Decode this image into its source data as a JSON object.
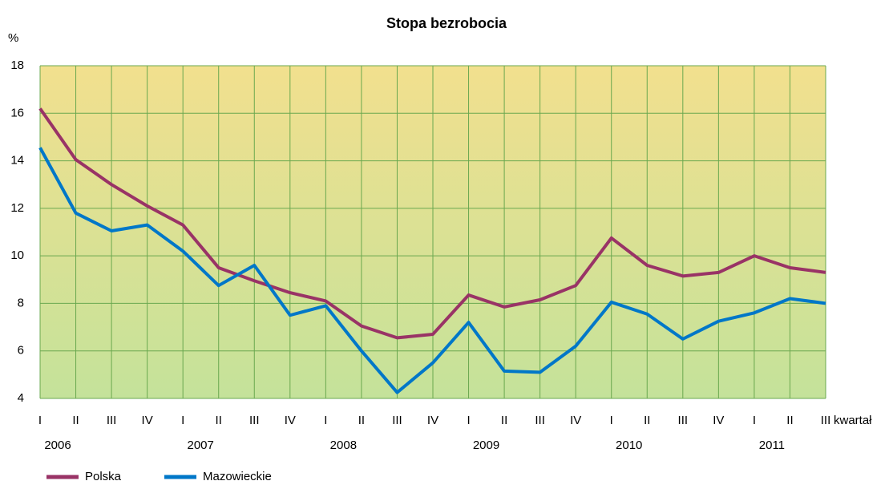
{
  "chart_data": {
    "type": "line",
    "title": "Stopa bezrobocia",
    "y_label": "%",
    "x_label": "kwartał",
    "categories": [
      "I",
      "II",
      "III",
      "IV",
      "I",
      "II",
      "III",
      "IV",
      "I",
      "II",
      "III",
      "IV",
      "I",
      "II",
      "III",
      "IV",
      "I",
      "II",
      "III",
      "IV",
      "I",
      "II",
      "III"
    ],
    "x_groups": [
      "2006",
      "2007",
      "2008",
      "2009",
      "2010",
      "2011"
    ],
    "series": [
      {
        "name": "Polska",
        "color": "#993366",
        "values": [
          16.2,
          14.05,
          13.0,
          12.1,
          11.3,
          9.5,
          8.95,
          8.45,
          8.1,
          7.05,
          6.55,
          6.7,
          8.35,
          7.85,
          8.15,
          8.75,
          10.75,
          9.6,
          9.15,
          9.3,
          10.0,
          9.5,
          9.3
        ]
      },
      {
        "name": "Mazowieckie",
        "color": "#0077c8",
        "values": [
          14.55,
          11.8,
          11.05,
          11.3,
          10.2,
          8.75,
          9.6,
          7.5,
          7.9,
          6.0,
          4.25,
          5.5,
          7.2,
          5.15,
          5.1,
          6.2,
          8.05,
          7.55,
          6.5,
          7.25,
          7.6,
          8.2,
          8.0
        ]
      }
    ],
    "ylim": [
      4,
      18
    ],
    "yticks": [
      4,
      6,
      8,
      10,
      12,
      14,
      16,
      18
    ],
    "grid": true,
    "legend": "bottom-left"
  }
}
